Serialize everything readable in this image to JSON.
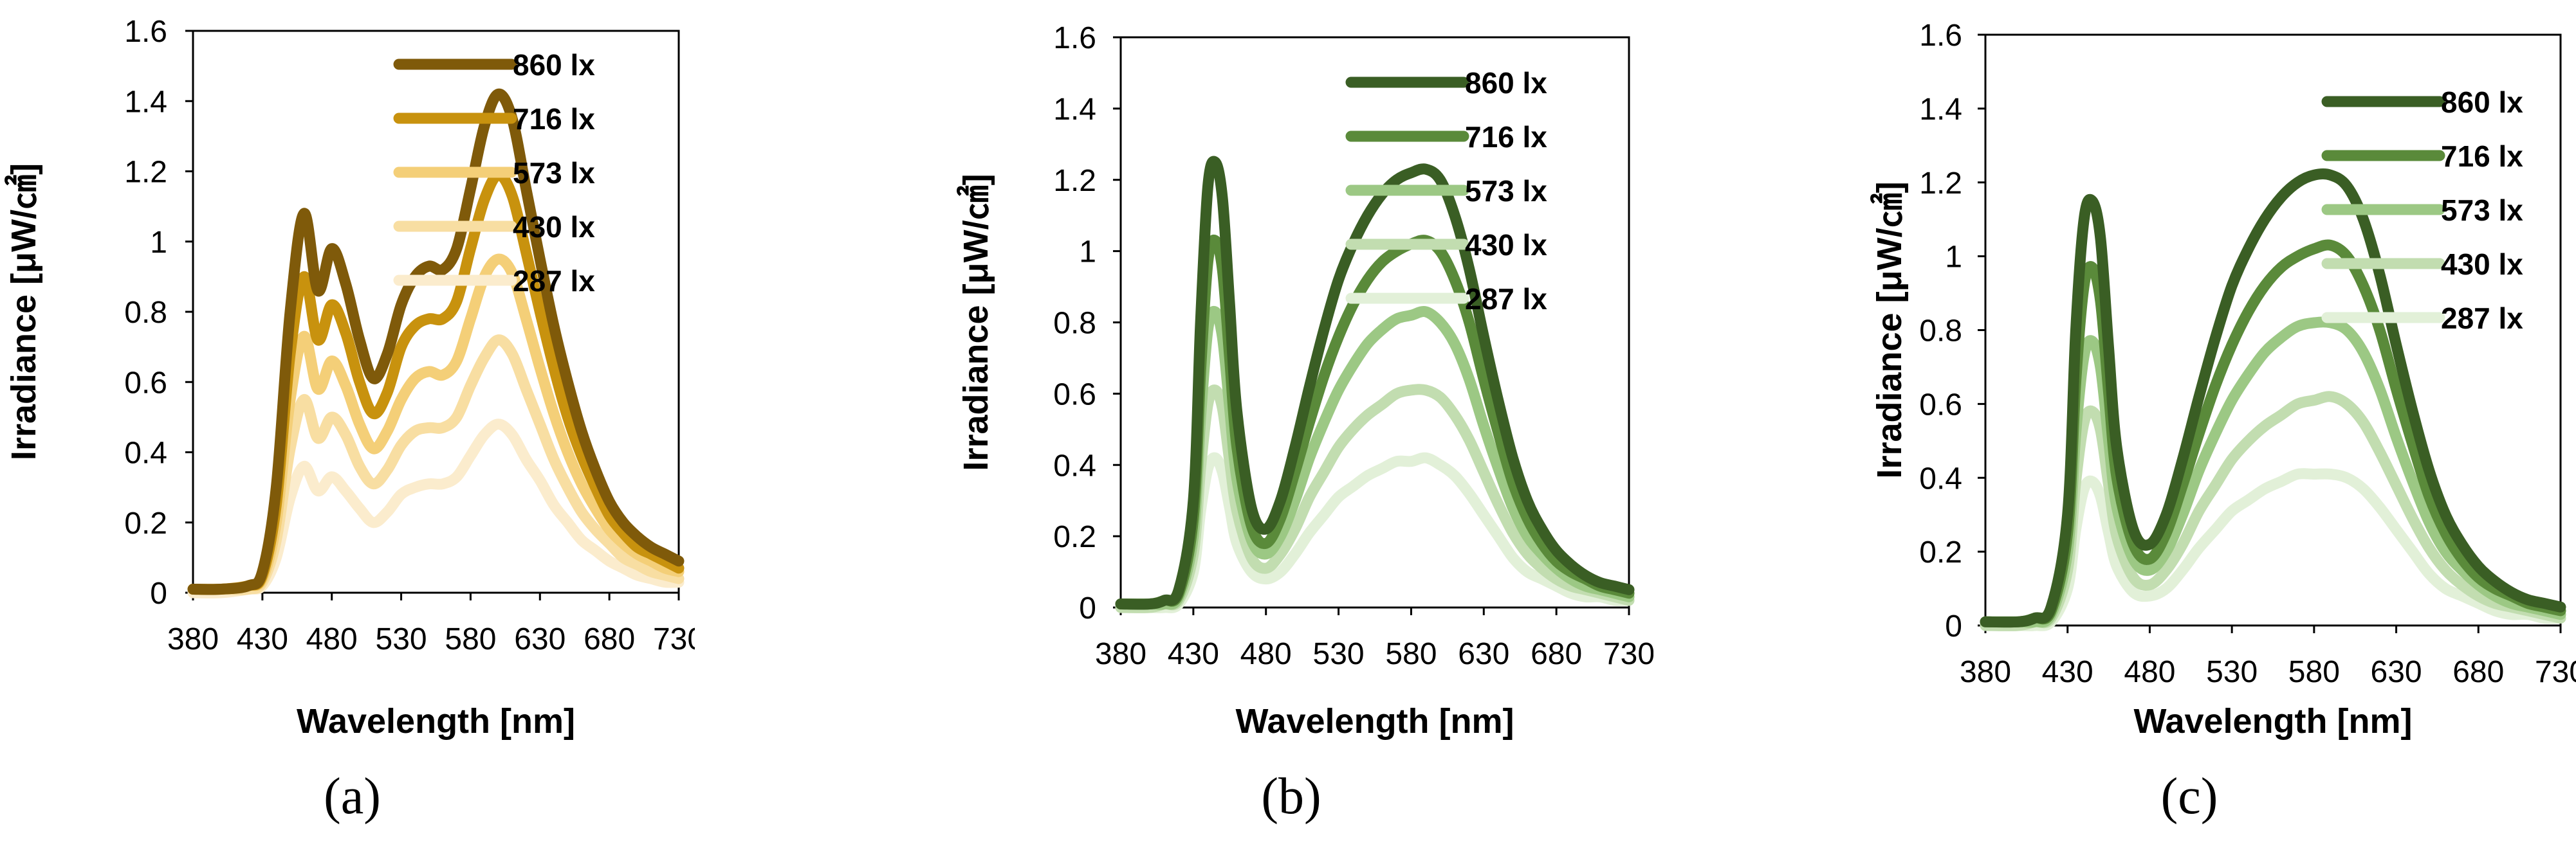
{
  "chart_data": [
    {
      "type": "line",
      "panel_label": "(a)",
      "xlabel": "Wavelength  [nm]",
      "ylabel": "Irradiance  [μW/㎠]",
      "xlim": [
        380,
        730
      ],
      "ylim": [
        0,
        1.6
      ],
      "x_ticks": [
        "380",
        "430",
        "480",
        "530",
        "580",
        "630",
        "680",
        "730"
      ],
      "y_ticks": [
        "0",
        "0.2",
        "0.4",
        "0.6",
        "0.8",
        "1",
        "1.2",
        "1.4",
        "1.6"
      ],
      "legend_position": "top-right",
      "x": [
        380,
        400,
        420,
        430,
        440,
        450,
        460,
        470,
        480,
        490,
        500,
        510,
        520,
        530,
        540,
        550,
        560,
        570,
        580,
        590,
        600,
        610,
        620,
        630,
        640,
        650,
        660,
        670,
        680,
        690,
        700,
        710,
        720,
        730
      ],
      "series": [
        {
          "name": "860 lx",
          "color": "#7f5a0a",
          "values": [
            0.01,
            0.01,
            0.02,
            0.06,
            0.3,
            0.8,
            1.08,
            0.86,
            0.98,
            0.88,
            0.72,
            0.61,
            0.68,
            0.82,
            0.9,
            0.93,
            0.92,
            0.98,
            1.15,
            1.33,
            1.42,
            1.35,
            1.15,
            0.95,
            0.76,
            0.6,
            0.46,
            0.35,
            0.26,
            0.2,
            0.16,
            0.13,
            0.11,
            0.09
          ]
        },
        {
          "name": "716 lx",
          "color": "#c8920e",
          "values": [
            0.01,
            0.01,
            0.02,
            0.05,
            0.25,
            0.68,
            0.9,
            0.72,
            0.82,
            0.74,
            0.6,
            0.51,
            0.57,
            0.7,
            0.76,
            0.78,
            0.78,
            0.83,
            0.98,
            1.12,
            1.19,
            1.13,
            0.97,
            0.8,
            0.64,
            0.5,
            0.39,
            0.3,
            0.22,
            0.17,
            0.13,
            0.11,
            0.09,
            0.07
          ]
        },
        {
          "name": "573 lx",
          "color": "#f4cf78",
          "values": [
            0.01,
            0.01,
            0.02,
            0.04,
            0.2,
            0.55,
            0.73,
            0.58,
            0.66,
            0.59,
            0.48,
            0.41,
            0.46,
            0.55,
            0.61,
            0.63,
            0.62,
            0.66,
            0.78,
            0.9,
            0.95,
            0.91,
            0.78,
            0.64,
            0.51,
            0.4,
            0.31,
            0.24,
            0.18,
            0.14,
            0.11,
            0.09,
            0.07,
            0.06
          ]
        },
        {
          "name": "430 lx",
          "color": "#f8dea2",
          "values": [
            0.01,
            0.01,
            0.01,
            0.03,
            0.15,
            0.41,
            0.55,
            0.44,
            0.5,
            0.45,
            0.36,
            0.31,
            0.35,
            0.42,
            0.46,
            0.47,
            0.47,
            0.5,
            0.59,
            0.67,
            0.72,
            0.68,
            0.58,
            0.48,
            0.38,
            0.3,
            0.23,
            0.18,
            0.14,
            0.1,
            0.08,
            0.06,
            0.05,
            0.04
          ]
        },
        {
          "name": "287 lx",
          "color": "#fbeccd",
          "values": [
            0.0,
            0.0,
            0.01,
            0.02,
            0.1,
            0.27,
            0.36,
            0.29,
            0.33,
            0.29,
            0.24,
            0.2,
            0.23,
            0.28,
            0.3,
            0.31,
            0.31,
            0.33,
            0.39,
            0.45,
            0.48,
            0.45,
            0.38,
            0.32,
            0.25,
            0.2,
            0.15,
            0.12,
            0.09,
            0.07,
            0.05,
            0.04,
            0.03,
            0.03
          ]
        }
      ]
    },
    {
      "type": "line",
      "panel_label": "(b)",
      "xlabel": "Wavelength  [nm]",
      "ylabel": "Irradiance  [μW/㎠]",
      "xlim": [
        380,
        730
      ],
      "ylim": [
        0,
        1.6
      ],
      "x_ticks": [
        "380",
        "430",
        "480",
        "530",
        "580",
        "630",
        "680",
        "730"
      ],
      "y_ticks": [
        "0",
        "0.2",
        "0.4",
        "0.6",
        "0.8",
        "1",
        "1.2",
        "1.4",
        "1.6"
      ],
      "legend_position": "top-right",
      "x": [
        380,
        400,
        410,
        420,
        430,
        435,
        440,
        445,
        450,
        455,
        460,
        470,
        480,
        490,
        500,
        510,
        520,
        530,
        540,
        550,
        560,
        570,
        580,
        590,
        600,
        610,
        620,
        630,
        640,
        650,
        660,
        670,
        680,
        690,
        700,
        710,
        720,
        730
      ],
      "series": [
        {
          "name": "860 lx",
          "color": "#3a5e24",
          "values": [
            0.01,
            0.01,
            0.02,
            0.05,
            0.3,
            0.8,
            1.18,
            1.25,
            1.15,
            0.85,
            0.55,
            0.28,
            0.22,
            0.3,
            0.45,
            0.62,
            0.78,
            0.92,
            1.02,
            1.1,
            1.16,
            1.2,
            1.22,
            1.23,
            1.2,
            1.1,
            0.95,
            0.76,
            0.58,
            0.42,
            0.3,
            0.22,
            0.16,
            0.12,
            0.09,
            0.07,
            0.06,
            0.05
          ]
        },
        {
          "name": "716 lx",
          "color": "#5a8a3a",
          "values": [
            0.01,
            0.01,
            0.02,
            0.04,
            0.25,
            0.66,
            0.97,
            1.03,
            0.95,
            0.7,
            0.45,
            0.23,
            0.18,
            0.25,
            0.38,
            0.52,
            0.65,
            0.76,
            0.85,
            0.92,
            0.97,
            1.0,
            1.02,
            1.03,
            1.0,
            0.92,
            0.8,
            0.64,
            0.49,
            0.35,
            0.25,
            0.18,
            0.13,
            0.1,
            0.08,
            0.06,
            0.05,
            0.04
          ]
        },
        {
          "name": "573 lx",
          "color": "#9cc884",
          "values": [
            0.01,
            0.01,
            0.01,
            0.03,
            0.2,
            0.53,
            0.78,
            0.83,
            0.76,
            0.56,
            0.36,
            0.19,
            0.15,
            0.2,
            0.3,
            0.42,
            0.52,
            0.61,
            0.68,
            0.74,
            0.78,
            0.81,
            0.82,
            0.83,
            0.8,
            0.74,
            0.64,
            0.51,
            0.39,
            0.28,
            0.2,
            0.15,
            0.11,
            0.08,
            0.06,
            0.05,
            0.04,
            0.03
          ]
        },
        {
          "name": "430 lx",
          "color": "#c2ddb0",
          "values": [
            0.0,
            0.0,
            0.01,
            0.02,
            0.15,
            0.39,
            0.57,
            0.61,
            0.56,
            0.41,
            0.27,
            0.14,
            0.11,
            0.15,
            0.22,
            0.31,
            0.38,
            0.45,
            0.5,
            0.54,
            0.57,
            0.6,
            0.61,
            0.61,
            0.59,
            0.54,
            0.47,
            0.38,
            0.29,
            0.21,
            0.15,
            0.11,
            0.08,
            0.06,
            0.05,
            0.04,
            0.03,
            0.02
          ]
        },
        {
          "name": "287 lx",
          "color": "#e2f0d8",
          "values": [
            0.0,
            0.0,
            0.0,
            0.01,
            0.1,
            0.27,
            0.39,
            0.42,
            0.38,
            0.28,
            0.18,
            0.1,
            0.08,
            0.1,
            0.15,
            0.21,
            0.26,
            0.31,
            0.34,
            0.37,
            0.39,
            0.41,
            0.41,
            0.42,
            0.4,
            0.37,
            0.32,
            0.26,
            0.2,
            0.14,
            0.1,
            0.08,
            0.06,
            0.04,
            0.03,
            0.03,
            0.02,
            0.02
          ]
        }
      ]
    },
    {
      "type": "line",
      "panel_label": "(c)",
      "xlabel": "Wavelength  [nm]",
      "ylabel": "Irradiance  [μW/㎠]",
      "xlim": [
        380,
        730
      ],
      "ylim": [
        0,
        1.6
      ],
      "x_ticks": [
        "380",
        "430",
        "480",
        "530",
        "580",
        "630",
        "680",
        "730"
      ],
      "y_ticks": [
        "0",
        "0.2",
        "0.4",
        "0.6",
        "0.8",
        "1",
        "1.2",
        "1.4",
        "1.6"
      ],
      "legend_position": "top-right",
      "x": [
        380,
        400,
        410,
        420,
        430,
        435,
        440,
        445,
        450,
        455,
        460,
        470,
        480,
        490,
        500,
        510,
        520,
        530,
        540,
        550,
        560,
        570,
        580,
        590,
        600,
        610,
        620,
        630,
        640,
        650,
        660,
        670,
        680,
        690,
        700,
        710,
        720,
        730
      ],
      "series": [
        {
          "name": "860 lx",
          "color": "#3a5e24",
          "values": [
            0.01,
            0.01,
            0.02,
            0.05,
            0.3,
            0.8,
            1.1,
            1.15,
            1.05,
            0.75,
            0.48,
            0.26,
            0.22,
            0.3,
            0.45,
            0.62,
            0.78,
            0.92,
            1.02,
            1.1,
            1.16,
            1.2,
            1.22,
            1.22,
            1.19,
            1.1,
            0.95,
            0.76,
            0.58,
            0.42,
            0.3,
            0.22,
            0.16,
            0.12,
            0.09,
            0.07,
            0.06,
            0.05
          ]
        },
        {
          "name": "716 lx",
          "color": "#5a8a3a",
          "values": [
            0.01,
            0.01,
            0.02,
            0.04,
            0.25,
            0.66,
            0.92,
            0.97,
            0.88,
            0.63,
            0.4,
            0.22,
            0.18,
            0.25,
            0.38,
            0.52,
            0.65,
            0.76,
            0.85,
            0.92,
            0.97,
            1.0,
            1.02,
            1.03,
            1.0,
            0.92,
            0.8,
            0.64,
            0.49,
            0.35,
            0.25,
            0.18,
            0.13,
            0.1,
            0.08,
            0.06,
            0.05,
            0.04
          ]
        },
        {
          "name": "573 lx",
          "color": "#9cc884",
          "values": [
            0.01,
            0.01,
            0.01,
            0.03,
            0.2,
            0.52,
            0.73,
            0.77,
            0.7,
            0.5,
            0.32,
            0.18,
            0.15,
            0.2,
            0.3,
            0.42,
            0.52,
            0.61,
            0.68,
            0.74,
            0.78,
            0.81,
            0.82,
            0.82,
            0.8,
            0.74,
            0.64,
            0.51,
            0.39,
            0.28,
            0.2,
            0.15,
            0.11,
            0.08,
            0.06,
            0.05,
            0.04,
            0.03
          ]
        },
        {
          "name": "430 lx",
          "color": "#c2ddb0",
          "values": [
            0.0,
            0.0,
            0.01,
            0.02,
            0.15,
            0.39,
            0.55,
            0.58,
            0.53,
            0.38,
            0.24,
            0.13,
            0.11,
            0.15,
            0.22,
            0.31,
            0.38,
            0.45,
            0.5,
            0.54,
            0.57,
            0.6,
            0.61,
            0.62,
            0.6,
            0.55,
            0.47,
            0.38,
            0.29,
            0.21,
            0.15,
            0.11,
            0.08,
            0.06,
            0.05,
            0.04,
            0.03,
            0.02
          ]
        },
        {
          "name": "287 lx",
          "color": "#e2f0d8",
          "values": [
            0.0,
            0.0,
            0.0,
            0.01,
            0.1,
            0.26,
            0.37,
            0.39,
            0.35,
            0.25,
            0.16,
            0.09,
            0.08,
            0.1,
            0.15,
            0.21,
            0.26,
            0.31,
            0.34,
            0.37,
            0.39,
            0.41,
            0.41,
            0.41,
            0.4,
            0.37,
            0.32,
            0.26,
            0.2,
            0.14,
            0.1,
            0.08,
            0.06,
            0.04,
            0.03,
            0.03,
            0.02,
            0.02
          ]
        }
      ]
    }
  ]
}
